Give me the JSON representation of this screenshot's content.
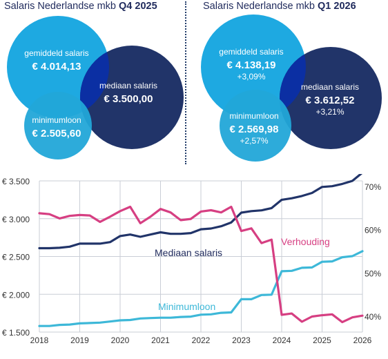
{
  "panels": [
    {
      "title_prefix": "Salaris Nederlandse mkb",
      "title_period": "Q4 2025",
      "average": {
        "label": "gemiddeld salaris",
        "value": "€ 4.014,13"
      },
      "median": {
        "label": "mediaan salaris",
        "value": "€ 3.500,00"
      },
      "minimum": {
        "label": "minimumloon",
        "value": "€ 2.505,60"
      }
    },
    {
      "title_prefix": "Salaris Nederlandse mkb",
      "title_period": "Q1 2026",
      "average": {
        "label": "gemiddeld salaris",
        "value": "€ 4.138,19",
        "change": "+3,09%"
      },
      "median": {
        "label": "mediaan salaris",
        "value": "€ 3.612,52",
        "change": "+3,21%"
      },
      "minimum": {
        "label": "minimumloon",
        "value": "€ 2.569,98",
        "change": "+2,57%"
      }
    }
  ],
  "colors": {
    "average": "#1ea9e1",
    "median": "#213469",
    "minimum": "#22a6d8",
    "overlap": "#0b2fa3",
    "ratio": "#d63f82",
    "min_line": "#3db8d8",
    "text_dark": "#1f2a5c"
  },
  "chart_data": {
    "type": "line",
    "x_ticks": [
      "2018",
      "2019",
      "2020",
      "2021",
      "2022",
      "2023",
      "2024",
      "2025",
      "2026"
    ],
    "xlim": [
      2018,
      2026
    ],
    "y_left_ticks": [
      "€ 1.500",
      "€ 2.000",
      "€ 2.500",
      "€ 3.000",
      "€ 3.500"
    ],
    "y_left_range": [
      1500,
      3500
    ],
    "y_right_ticks": [
      "40%",
      "50%",
      "60%",
      "70%"
    ],
    "y_right_range": [
      36.3,
      71.3
    ],
    "series": [
      {
        "name": "Mediaan salaris",
        "axis": "left",
        "x": [
          2018,
          2018.25,
          2018.5,
          2018.75,
          2019,
          2019.25,
          2019.5,
          2019.75,
          2020,
          2020.25,
          2020.5,
          2020.75,
          2021,
          2021.25,
          2021.5,
          2021.75,
          2022,
          2022.25,
          2022.5,
          2022.75,
          2023,
          2023.25,
          2023.5,
          2023.75,
          2024,
          2024.25,
          2024.5,
          2024.75,
          2025,
          2025.25,
          2025.5,
          2025.75,
          2026
        ],
        "values": [
          2610,
          2610,
          2615,
          2630,
          2670,
          2670,
          2670,
          2690,
          2770,
          2790,
          2760,
          2790,
          2820,
          2800,
          2800,
          2810,
          2860,
          2870,
          2900,
          2950,
          3080,
          3100,
          3110,
          3140,
          3250,
          3270,
          3300,
          3340,
          3420,
          3430,
          3460,
          3500,
          3610
        ]
      },
      {
        "name": "Minimumloon",
        "axis": "left",
        "x": [
          2018,
          2018.25,
          2018.5,
          2018.75,
          2019,
          2019.25,
          2019.5,
          2019.75,
          2020,
          2020.25,
          2020.5,
          2020.75,
          2021,
          2021.25,
          2021.5,
          2021.75,
          2022,
          2022.25,
          2022.5,
          2022.75,
          2023,
          2023.25,
          2023.5,
          2023.75,
          2024,
          2024.25,
          2024.5,
          2024.75,
          2025,
          2025.25,
          2025.5,
          2025.75,
          2026
        ],
        "values": [
          1580,
          1580,
          1595,
          1600,
          1615,
          1620,
          1625,
          1640,
          1655,
          1660,
          1680,
          1685,
          1690,
          1690,
          1700,
          1705,
          1730,
          1735,
          1755,
          1760,
          1935,
          1935,
          1990,
          1995,
          2305,
          2310,
          2350,
          2355,
          2430,
          2435,
          2490,
          2505,
          2570
        ]
      },
      {
        "name": "Verhouding",
        "axis": "right",
        "x": [
          2018,
          2018.25,
          2018.5,
          2018.75,
          2019,
          2019.25,
          2019.5,
          2019.75,
          2020,
          2020.25,
          2020.5,
          2020.75,
          2021,
          2021.25,
          2021.5,
          2021.75,
          2022,
          2022.25,
          2022.5,
          2022.75,
          2023,
          2023.25,
          2023.5,
          2023.75,
          2024,
          2024.25,
          2024.5,
          2024.75,
          2025,
          2025.25,
          2025.5,
          2025.75,
          2026
        ],
        "values": [
          63.8,
          63.6,
          62.6,
          63.2,
          63.4,
          63.3,
          61.8,
          63.0,
          64.3,
          65.3,
          61.5,
          63.0,
          64.8,
          64.0,
          62.2,
          62.5,
          64.2,
          64.5,
          64.0,
          65.3,
          59.7,
          60.3,
          56.9,
          57.7,
          40.3,
          40.6,
          38.7,
          39.9,
          40.2,
          40.4,
          38.6,
          39.7,
          40.1
        ]
      }
    ]
  }
}
